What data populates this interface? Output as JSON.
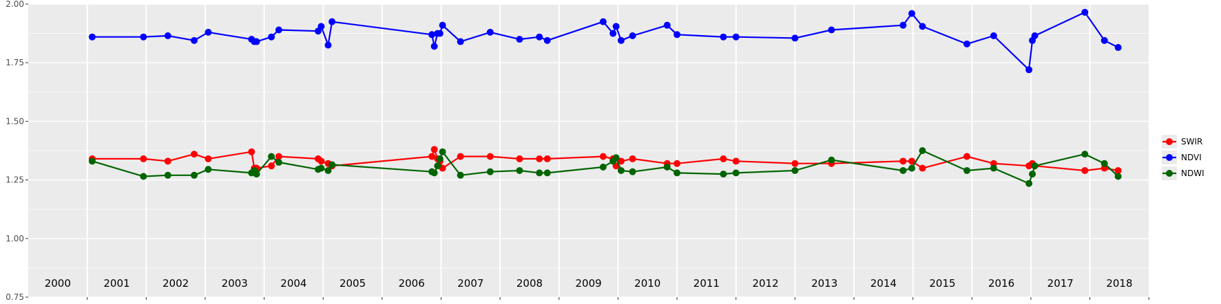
{
  "chart_data": {
    "type": "line",
    "title": "",
    "xlabel": "",
    "ylabel": "",
    "x_range": [
      "2000-01-01",
      "2018-12-31"
    ],
    "ylim": [
      0.75,
      2.0
    ],
    "yticks": [
      {
        "value": 0.75,
        "label": "0.75"
      },
      {
        "value": 1.0,
        "label": "1.00"
      },
      {
        "value": 1.25,
        "label": "1.25"
      },
      {
        "value": 1.5,
        "label": "1.50"
      },
      {
        "value": 1.75,
        "label": "1.75"
      },
      {
        "value": 2.0,
        "label": "2.00"
      }
    ],
    "year_labels": [
      "2000",
      "2001",
      "2002",
      "2003",
      "2004",
      "2005",
      "2006",
      "2007",
      "2008",
      "2009",
      "2010",
      "2011",
      "2012",
      "2013",
      "2014",
      "2015",
      "2016",
      "2017",
      "2018"
    ],
    "grid": true,
    "legend_position": "right",
    "x": [
      "2001-02-01",
      "2001-12-15",
      "2002-05-15",
      "2002-10-25",
      "2003-01-20",
      "2003-10-15",
      "2003-11-01",
      "2003-11-15",
      "2004-02-15",
      "2004-04-01",
      "2004-12-01",
      "2004-12-20",
      "2005-02-01",
      "2005-02-25",
      "2006-11-05",
      "2006-11-20",
      "2006-12-10",
      "2006-12-25",
      "2007-01-10",
      "2007-05-01",
      "2007-11-01",
      "2008-05-01",
      "2008-09-01",
      "2008-10-20",
      "2009-10-01",
      "2009-12-01",
      "2009-12-20",
      "2010-01-20",
      "2010-04-01",
      "2010-11-01",
      "2011-01-01",
      "2011-10-15",
      "2012-01-01",
      "2013-01-01",
      "2013-08-15",
      "2014-11-01",
      "2014-12-25",
      "2015-03-01",
      "2015-12-01",
      "2016-05-15",
      "2016-12-20",
      "2017-01-10",
      "2017-01-25",
      "2017-12-01",
      "2018-04-01",
      "2018-06-25"
    ],
    "series": [
      {
        "name": "SWIR",
        "color": "#ff0000",
        "values": [
          1.34,
          1.34,
          1.33,
          1.36,
          1.34,
          1.37,
          1.3,
          1.3,
          1.31,
          1.35,
          1.34,
          1.33,
          1.32,
          1.31,
          1.35,
          1.38,
          1.34,
          1.33,
          1.3,
          1.35,
          1.35,
          1.34,
          1.34,
          1.34,
          1.35,
          1.34,
          1.31,
          1.33,
          1.34,
          1.32,
          1.32,
          1.34,
          1.33,
          1.32,
          1.32,
          1.33,
          1.33,
          1.3,
          1.35,
          1.32,
          1.31,
          1.32,
          1.31,
          1.29,
          1.3,
          1.29
        ]
      },
      {
        "name": "NDVI",
        "color": "#0000ff",
        "values": [
          1.86,
          1.86,
          1.865,
          1.845,
          1.88,
          1.85,
          1.84,
          1.84,
          1.86,
          1.89,
          1.885,
          1.905,
          1.825,
          1.925,
          1.87,
          1.82,
          1.875,
          1.875,
          1.91,
          1.84,
          1.88,
          1.85,
          1.86,
          1.845,
          1.925,
          1.875,
          1.905,
          1.845,
          1.865,
          1.91,
          1.87,
          1.86,
          1.86,
          1.855,
          1.89,
          1.91,
          1.96,
          1.905,
          1.83,
          1.865,
          1.72,
          1.845,
          1.865,
          1.965,
          1.845,
          1.815
        ]
      },
      {
        "name": "NDWI",
        "color": "#006400",
        "values": [
          1.33,
          1.265,
          1.27,
          1.27,
          1.295,
          1.28,
          1.29,
          1.275,
          1.35,
          1.325,
          1.295,
          1.3,
          1.29,
          1.315,
          1.285,
          1.28,
          1.31,
          1.34,
          1.37,
          1.27,
          1.285,
          1.29,
          1.28,
          1.28,
          1.305,
          1.33,
          1.345,
          1.29,
          1.285,
          1.305,
          1.28,
          1.275,
          1.28,
          1.29,
          1.335,
          1.29,
          1.3,
          1.375,
          1.29,
          1.3,
          1.235,
          1.275,
          1.31,
          1.36,
          1.32,
          1.265
        ]
      }
    ]
  }
}
